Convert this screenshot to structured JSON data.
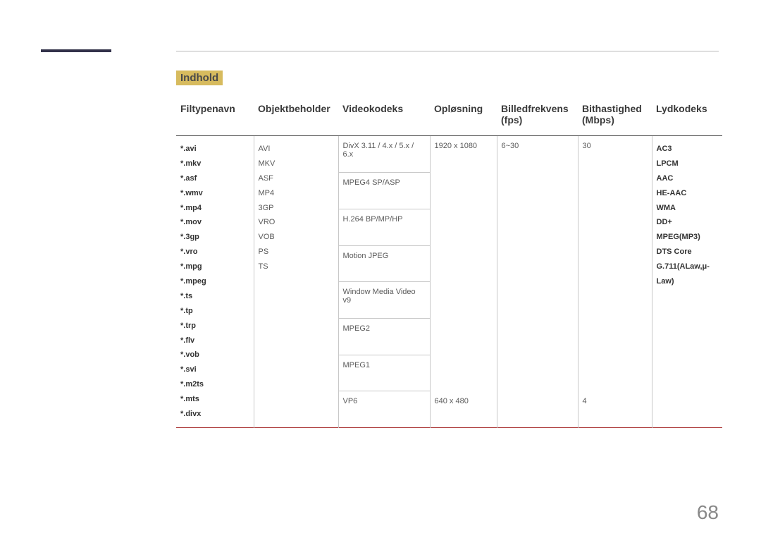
{
  "colors": {
    "accent_bar": "#33324a",
    "section_bg": "#d7bb5e",
    "top_rule": "#b8b8b8",
    "table_top_rule": "#555555",
    "table_bottom_rule": "#a33333",
    "cell_border": "#c8c8c8",
    "text": "#4a4a4a",
    "page_num": "#888888"
  },
  "section_title": "Indhold",
  "page_number": "68",
  "columns": [
    "Filtypenavn",
    "Objektbeholder",
    "Videokodeks",
    "Opløsning",
    "Billedfrekvens (fps)",
    "Bithastighed (Mbps)",
    "Lydkodeks"
  ],
  "file_extensions": [
    "*.avi",
    "*.mkv",
    "*.asf",
    "*.wmv",
    "*.mp4",
    "*.mov",
    "*.3gp",
    "*.vro",
    "*.mpg",
    "*.mpeg",
    "*.ts",
    "*.tp",
    "*.trp",
    "*.flv",
    "*.vob",
    "*.svi",
    "*.m2ts",
    "*.mts",
    "*.divx"
  ],
  "containers": [
    "AVI",
    "MKV",
    "ASF",
    "MP4",
    "3GP",
    "VRO",
    "VOB",
    "PS",
    "TS"
  ],
  "video_codecs": [
    "DivX 3.11 / 4.x / 5.x / 6.x",
    "MPEG4 SP/ASP",
    "H.264 BP/MP/HP",
    "Motion JPEG",
    "Window Media Video v9",
    "MPEG2",
    "MPEG1",
    "VP6"
  ],
  "resolutions": {
    "r1": "1920 x 1080",
    "r2": "640 x 480"
  },
  "fps": {
    "f1": "6~30"
  },
  "bitrates": {
    "b1": "30",
    "b2": "4"
  },
  "audio_codecs": [
    "AC3",
    "LPCM",
    "AAC",
    "HE-AAC",
    "WMA",
    "DD+",
    "MPEG(MP3)",
    "DTS Core",
    "G.711(ALaw,μ-Law)"
  ]
}
